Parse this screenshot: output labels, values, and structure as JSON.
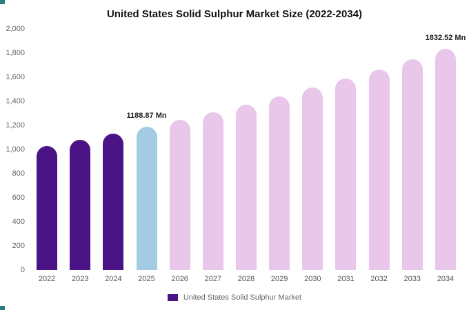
{
  "chart_data": {
    "type": "bar",
    "title": "United States Solid Sulphur Market Size (2022-2034)",
    "categories": [
      "2022",
      "2023",
      "2024",
      "2025",
      "2026",
      "2027",
      "2028",
      "2029",
      "2030",
      "2031",
      "2032",
      "2033",
      "2034"
    ],
    "values": [
      1029,
      1080,
      1133,
      1188.87,
      1247,
      1308,
      1373,
      1441,
      1512,
      1586,
      1664,
      1746,
      1832.52
    ],
    "unit": "Mn",
    "xlabel": "",
    "ylabel": "",
    "ylim": [
      0,
      2000
    ],
    "ytick_step": 200,
    "ytick_labels": [
      "0",
      "200",
      "400",
      "600",
      "800",
      "1,000",
      "1,200",
      "1,400",
      "1,600",
      "1,800",
      "2,000"
    ],
    "bar_labels": [
      null,
      null,
      null,
      "1188.87 Mn",
      null,
      null,
      null,
      null,
      null,
      null,
      null,
      null,
      "1832.52 Mn"
    ],
    "bar_colors": [
      "#4a1486",
      "#4a1486",
      "#4a1486",
      "#a3cbe3",
      "#e9c7eb",
      "#e9c7eb",
      "#e9c7eb",
      "#e9c7eb",
      "#e9c7eb",
      "#e9c7eb",
      "#e9c7eb",
      "#e9c7eb",
      "#e9c7eb"
    ],
    "grid": false,
    "legend": "United States Solid Sulphur Market",
    "legend_position": "bottom",
    "legend_color": "#4a1486"
  }
}
